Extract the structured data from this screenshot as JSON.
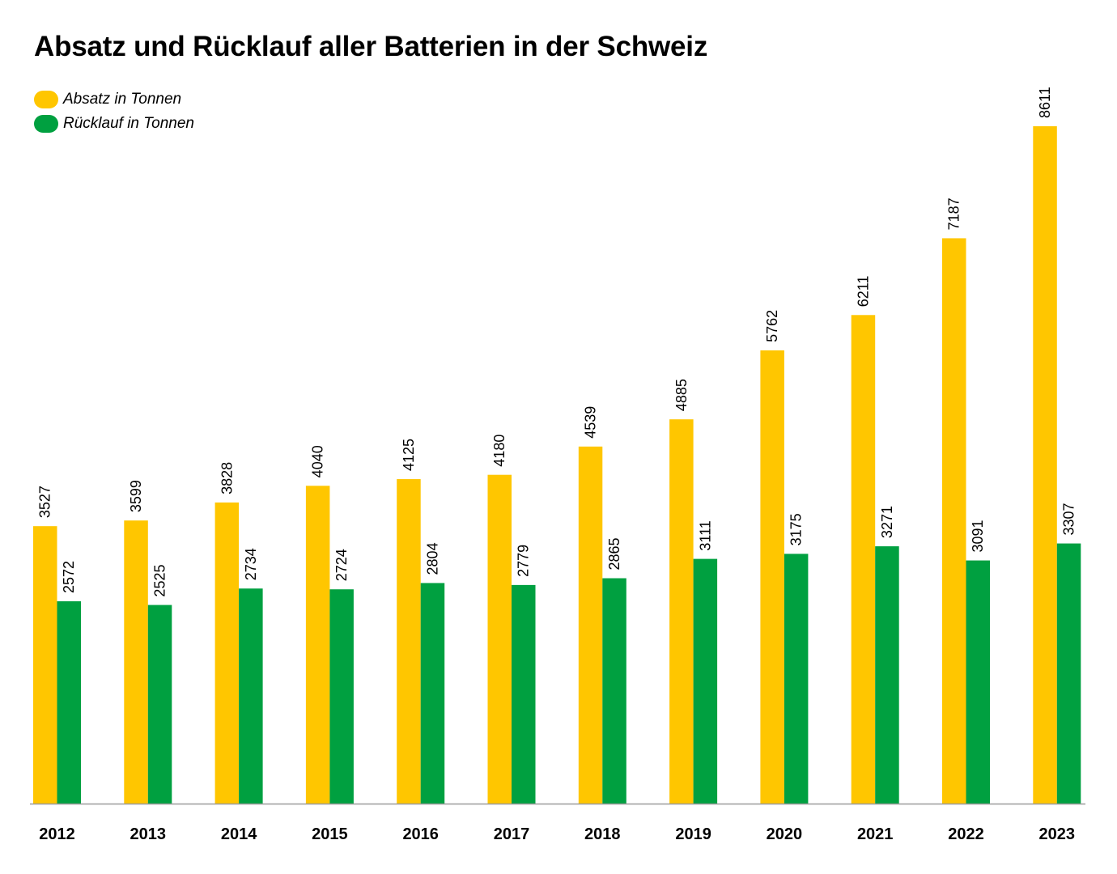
{
  "chart_data": {
    "type": "bar",
    "title": "Absatz und Rücklauf aller Batterien in der Schweiz",
    "categories": [
      "2012",
      "2013",
      "2014",
      "2015",
      "2016",
      "2017",
      "2018",
      "2019",
      "2020",
      "2021",
      "2022",
      "2023"
    ],
    "series": [
      {
        "name": "Absatz in Tonnen",
        "color": "#FFC600",
        "values": [
          3527,
          3599,
          3828,
          4040,
          4125,
          4180,
          4539,
          4885,
          5762,
          6211,
          7187,
          8611
        ]
      },
      {
        "name": "Rücklauf in Tonnen",
        "color": "#00A040",
        "values": [
          2572,
          2525,
          2734,
          2724,
          2804,
          2779,
          2865,
          3111,
          3175,
          3271,
          3091,
          3307
        ]
      }
    ],
    "xlabel": "",
    "ylabel": "",
    "ylim": [
      0,
      8611
    ],
    "grid": false,
    "legend": "top-left"
  }
}
